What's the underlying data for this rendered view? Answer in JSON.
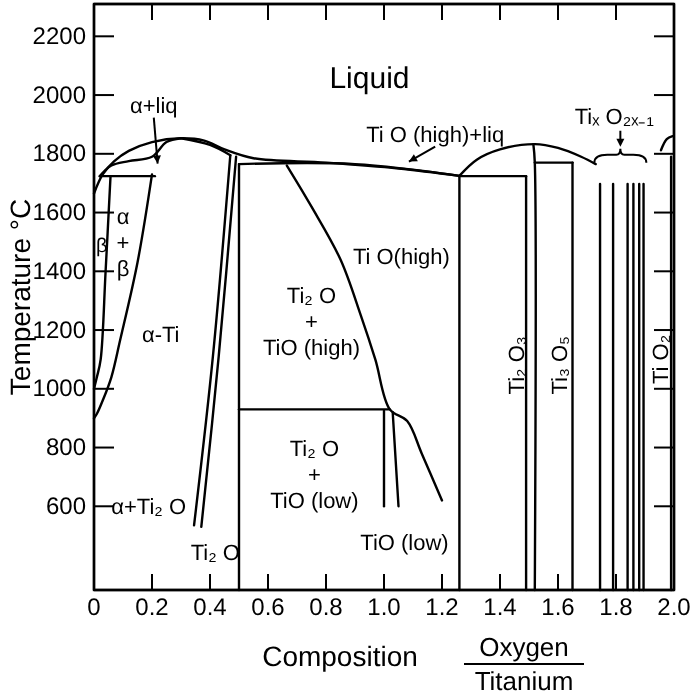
{
  "chart_data": {
    "type": "line",
    "xlabel": "Composition",
    "ylabel": "Temperature °C",
    "xlim": [
      0,
      2.0
    ],
    "ylim": [
      315,
      2310
    ],
    "xticks": [
      0,
      0.2,
      0.4,
      0.6,
      0.8,
      {
        "value": 1,
        "label": "1.0"
      },
      1.2,
      1.4,
      1.6,
      1.8,
      {
        "value": 2,
        "label": "2.0"
      }
    ],
    "yticks": [
      600,
      800,
      1000,
      1200,
      1400,
      1600,
      1800,
      2000,
      2200
    ],
    "series": [
      {
        "color": "#000000",
        "x": [
          0,
          0.03,
          0.07,
          0.12,
          0.2,
          0.3,
          0.38,
          0.45,
          0.55,
          0.8,
          1.05,
          1.26
        ],
        "values": [
          1665,
          1730,
          1775,
          1810,
          1840,
          1853,
          1845,
          1815,
          1785,
          1770,
          1750,
          1725
        ]
      },
      {
        "color": "#000000",
        "x": [
          0.02,
          0.06,
          0.12,
          0.2,
          0.25,
          0.3
        ],
        "values": [
          1724,
          1760,
          1775,
          1790,
          1840,
          1853
        ]
      },
      {
        "color": "#000000",
        "x": [
          0.3,
          0.4,
          0.47
        ],
        "values": [
          1853,
          1830,
          1795
        ]
      },
      {
        "color": "#000000",
        "x": [
          0.02,
          0.21
        ],
        "values": [
          1724,
          1724
        ]
      },
      {
        "color": "#000000",
        "x": [
          0.057,
          0.04,
          0.023,
          0.01,
          0
        ],
        "values": [
          1724,
          1400,
          1100,
          1040,
          1000
        ]
      },
      {
        "color": "#000000",
        "x": [
          0.2,
          0.15,
          0.09,
          0.06,
          0.03,
          0.01,
          0
        ],
        "values": [
          1730,
          1430,
          1165,
          1040,
          960,
          915,
          900
        ]
      },
      {
        "color": "#000000",
        "x": [
          0.47,
          0.41,
          0.345
        ],
        "values": [
          1795,
          1110,
          535
        ]
      },
      {
        "color": "#000000",
        "x": [
          0.49,
          0.43,
          0.37
        ],
        "values": [
          1790,
          1110,
          530
        ]
      },
      {
        "color": "#000000",
        "x": [
          0.5,
          0.5
        ],
        "values": [
          1765,
          315
        ]
      },
      {
        "color": "#000000",
        "x": [
          0.5,
          0.9,
          1.26
        ],
        "values": [
          1765,
          1765,
          1725
        ]
      },
      {
        "color": "#000000",
        "x": [
          1.26,
          1.26
        ],
        "values": [
          1725,
          315
        ]
      },
      {
        "color": "#000000",
        "x": [
          1.26,
          1.32,
          1.4,
          1.52,
          1.6,
          1.68,
          1.73
        ],
        "values": [
          1725,
          1780,
          1815,
          1833,
          1820,
          1790,
          1765
        ]
      },
      {
        "color": "#000000",
        "x": [
          1.26,
          1.49
        ],
        "values": [
          1724,
          1724
        ]
      },
      {
        "color": "#000000",
        "x": [
          1.49,
          1.49
        ],
        "values": [
          1724,
          315
        ]
      },
      {
        "color": "#000000",
        "x": [
          1.515,
          1.52,
          1.52
        ],
        "values": [
          1833,
          1770,
          315
        ]
      },
      {
        "color": "#000000",
        "x": [
          1.52,
          1.65
        ],
        "values": [
          1770,
          1770
        ]
      },
      {
        "color": "#000000",
        "x": [
          1.65,
          1.65
        ],
        "values": [
          1770,
          315
        ]
      },
      {
        "color": "#000000",
        "x": [
          1.745,
          1.745
        ],
        "values": [
          1697,
          315
        ]
      },
      {
        "color": "#000000",
        "x": [
          1.79,
          1.79
        ],
        "values": [
          1697,
          315
        ]
      },
      {
        "color": "#000000",
        "x": [
          1.84,
          1.84
        ],
        "values": [
          1697,
          315
        ]
      },
      {
        "color": "#000000",
        "x": [
          1.86,
          1.86
        ],
        "values": [
          1697,
          315
        ]
      },
      {
        "color": "#000000",
        "x": [
          1.88,
          1.88
        ],
        "values": [
          1697,
          315
        ]
      },
      {
        "color": "#000000",
        "x": [
          1.895,
          1.895
        ],
        "values": [
          1697,
          315
        ]
      },
      {
        "color": "#000000",
        "x": [
          1.99,
          1.99
        ],
        "values": [
          1790,
          315
        ]
      },
      {
        "color": "#000000",
        "x": [
          1.955,
          1.975,
          1.995
        ],
        "values": [
          1812,
          1850,
          1860
        ]
      },
      {
        "color": "#000000",
        "x": [
          0.665,
          0.75,
          0.85,
          0.92,
          0.97,
          1.02,
          1.08,
          1.13,
          1.2
        ],
        "values": [
          1760,
          1620,
          1440,
          1250,
          1100,
          930,
          890,
          780,
          620
        ]
      },
      {
        "color": "#000000",
        "x": [
          0.5,
          1.02
        ],
        "values": [
          930,
          930
        ]
      },
      {
        "color": "#000000",
        "x": [
          1.0,
          1.0
        ],
        "values": [
          925,
          600
        ]
      },
      {
        "color": "#000000",
        "x": [
          1.03,
          1.05
        ],
        "values": [
          920,
          600
        ]
      }
    ],
    "annotations": [
      "Liquid",
      {
        "text": "α+liq",
        "x": 0.22,
        "y": 1760
      },
      "α\n+\nβ",
      "β",
      "α-Ti",
      "Ti₂ O\n+\nTiO (high)",
      "Ti O(high)",
      {
        "text": "Ti O (high)+liq",
        "x": 1.08,
        "y": 1770
      },
      "Ti₂ O\n+\nTiO (low)",
      {
        "text": "α+Ti₂ O",
        "x": 0.345,
        "y": 620
      },
      {
        "text": "Ti₂ O",
        "x": 0.37,
        "y": 540
      },
      {
        "text": "TiO (low)",
        "x": 1.05,
        "y": 600
      },
      "Ti₂ O₃",
      "Ti₃ O₅",
      "Ti O₂",
      "Tiₓ O₂ₓ₋₁",
      "Oxygen",
      "Titanium"
    ]
  }
}
